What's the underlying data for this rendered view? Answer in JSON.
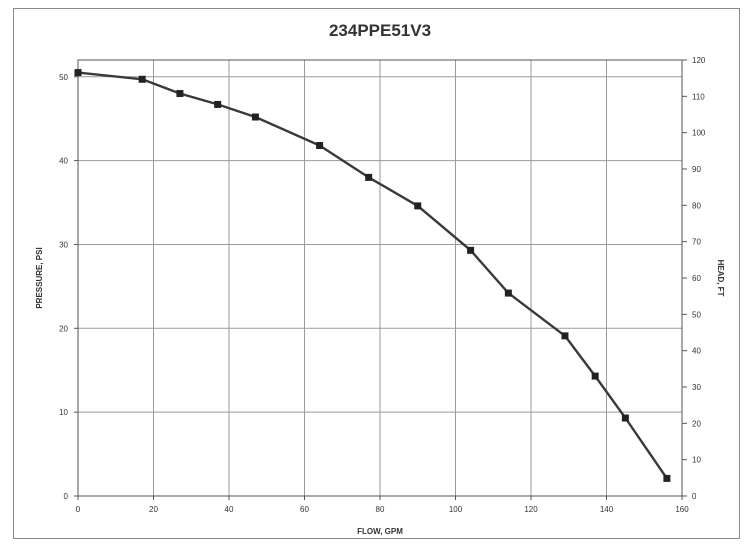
{
  "chart_data": {
    "type": "line",
    "title": "234PPE51V3",
    "xlabel": "FLOW, GPM",
    "ylabel": "PRESSURE, PSI",
    "y2label": "HEAD, FT",
    "xlim": [
      0,
      160
    ],
    "ylim": [
      0,
      52
    ],
    "y2lim": [
      0,
      120
    ],
    "x_ticks": [
      "0",
      "20",
      "40",
      "60",
      "80",
      "100",
      "120",
      "140",
      "160"
    ],
    "y_ticks": [
      "0",
      "10",
      "20",
      "30",
      "40",
      "50"
    ],
    "y2_ticks": [
      "0",
      "10",
      "20",
      "30",
      "40",
      "50",
      "60",
      "70",
      "80",
      "90",
      "100",
      "110",
      "120"
    ],
    "grid": true,
    "series": [
      {
        "color": "#333333",
        "x": [
          0,
          17,
          27,
          37,
          47,
          64,
          77,
          90,
          104,
          114,
          129,
          137,
          145,
          156
        ],
        "y": [
          50.5,
          49.7,
          48.0,
          46.7,
          45.2,
          41.8,
          38.0,
          34.6,
          29.3,
          24.2,
          19.1,
          14.3,
          9.3,
          2.1
        ]
      }
    ]
  }
}
